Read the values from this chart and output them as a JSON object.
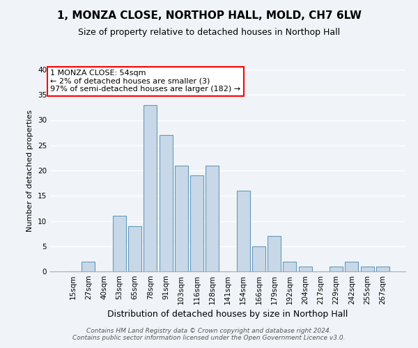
{
  "title": "1, MONZA CLOSE, NORTHOP HALL, MOLD, CH7 6LW",
  "subtitle": "Size of property relative to detached houses in Northop Hall",
  "xlabel": "Distribution of detached houses by size in Northop Hall",
  "ylabel": "Number of detached properties",
  "bar_color": "#c8d8e8",
  "bar_edge_color": "#6699bb",
  "categories": [
    "15sqm",
    "27sqm",
    "40sqm",
    "53sqm",
    "65sqm",
    "78sqm",
    "91sqm",
    "103sqm",
    "116sqm",
    "128sqm",
    "141sqm",
    "154sqm",
    "166sqm",
    "179sqm",
    "192sqm",
    "204sqm",
    "217sqm",
    "229sqm",
    "242sqm",
    "255sqm",
    "267sqm"
  ],
  "values": [
    0,
    2,
    0,
    11,
    9,
    33,
    27,
    21,
    19,
    21,
    0,
    16,
    5,
    7,
    2,
    1,
    0,
    1,
    2,
    1,
    1
  ],
  "ylim": [
    0,
    40
  ],
  "yticks": [
    0,
    5,
    10,
    15,
    20,
    25,
    30,
    35,
    40
  ],
  "annotation_line1": "1 MONZA CLOSE: 54sqm",
  "annotation_line2": "← 2% of detached houses are smaller (3)",
  "annotation_line3": "97% of semi-detached houses are larger (182) →",
  "annotation_box_color": "white",
  "annotation_box_edge_color": "red",
  "footer_text": "Contains HM Land Registry data © Crown copyright and database right 2024.\nContains public sector information licensed under the Open Government Licence v3.0.",
  "background_color": "#f0f4f8",
  "grid_color": "white",
  "title_fontsize": 11,
  "subtitle_fontsize": 9,
  "ylabel_fontsize": 8,
  "xlabel_fontsize": 9,
  "tick_fontsize": 7.5,
  "annotation_fontsize": 8,
  "footer_fontsize": 6.5
}
